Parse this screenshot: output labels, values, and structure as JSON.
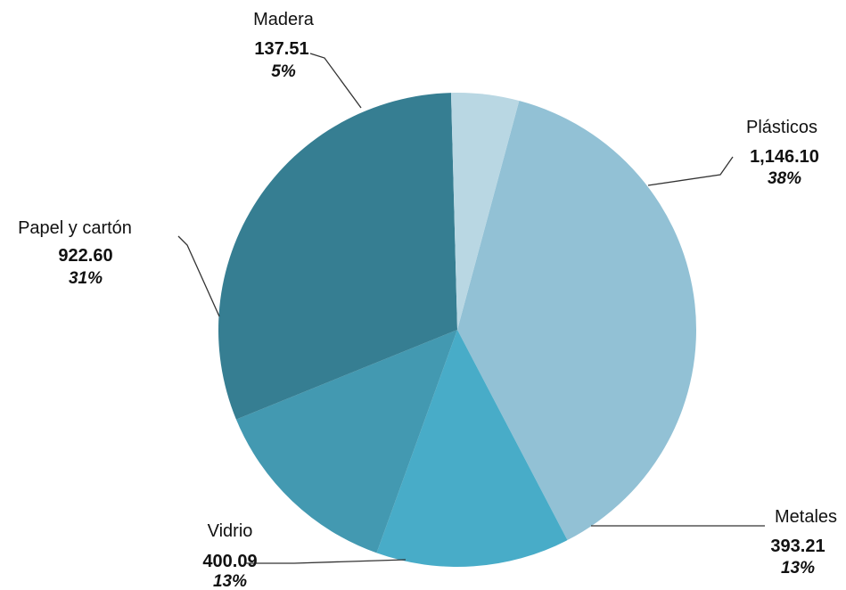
{
  "chart_data": {
    "type": "pie",
    "title": "",
    "slices": [
      {
        "label": "Plásticos",
        "value": 1146.1,
        "value_text": "1,146.10",
        "percent_text": "38%",
        "color": "#92c1d5"
      },
      {
        "label": "Metales",
        "value": 393.21,
        "value_text": "393.21",
        "percent_text": "13%",
        "color": "#48acc8"
      },
      {
        "label": "Vidrio",
        "value": 400.09,
        "value_text": "400.09",
        "percent_text": "13%",
        "color": "#4399b1"
      },
      {
        "label": "Papel y cartón",
        "value": 922.6,
        "value_text": "922.60",
        "percent_text": "31%",
        "color": "#367e92"
      },
      {
        "label": "Madera",
        "value": 137.51,
        "value_text": "137.51",
        "percent_text": "5%",
        "color": "#b9d7e3"
      }
    ],
    "start_angle_deg": -75,
    "direction": "clockwise",
    "legend": "none"
  }
}
